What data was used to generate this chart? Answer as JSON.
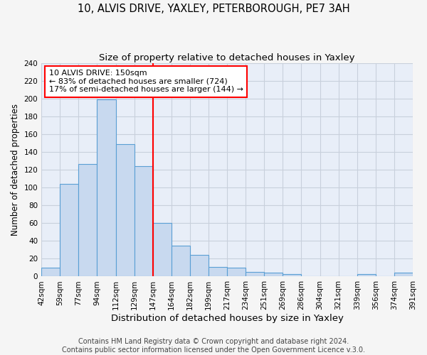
{
  "title": "10, ALVIS DRIVE, YAXLEY, PETERBOROUGH, PE7 3AH",
  "subtitle": "Size of property relative to detached houses in Yaxley",
  "xlabel": "Distribution of detached houses by size in Yaxley",
  "ylabel": "Number of detached properties",
  "bin_labels": [
    "42sqm",
    "59sqm",
    "77sqm",
    "94sqm",
    "112sqm",
    "129sqm",
    "147sqm",
    "164sqm",
    "182sqm",
    "199sqm",
    "217sqm",
    "234sqm",
    "251sqm",
    "269sqm",
    "286sqm",
    "304sqm",
    "321sqm",
    "339sqm",
    "356sqm",
    "374sqm",
    "391sqm"
  ],
  "bin_values": [
    10,
    104,
    127,
    199,
    149,
    124,
    60,
    35,
    24,
    11,
    10,
    5,
    4,
    3,
    0,
    0,
    0,
    3,
    0,
    4
  ],
  "bar_color": "#c8d9ef",
  "bar_edge_color": "#5a9fd4",
  "vline_x_index": 6,
  "vline_color": "red",
  "annotation_text": "10 ALVIS DRIVE: 150sqm\n← 83% of detached houses are smaller (724)\n17% of semi-detached houses are larger (144) →",
  "annotation_box_color": "white",
  "annotation_box_edge": "red",
  "ylim": [
    0,
    240
  ],
  "yticks": [
    0,
    20,
    40,
    60,
    80,
    100,
    120,
    140,
    160,
    180,
    200,
    220,
    240
  ],
  "footer1": "Contains HM Land Registry data © Crown copyright and database right 2024.",
  "footer2": "Contains public sector information licensed under the Open Government Licence v.3.0.",
  "plot_bg_color": "#e8eef8",
  "fig_bg_color": "#f5f5f5",
  "grid_color": "#c8d0dc",
  "title_fontsize": 10.5,
  "subtitle_fontsize": 9.5,
  "xlabel_fontsize": 9.5,
  "ylabel_fontsize": 8.5,
  "tick_fontsize": 7.5,
  "annotation_fontsize": 8,
  "footer_fontsize": 7
}
